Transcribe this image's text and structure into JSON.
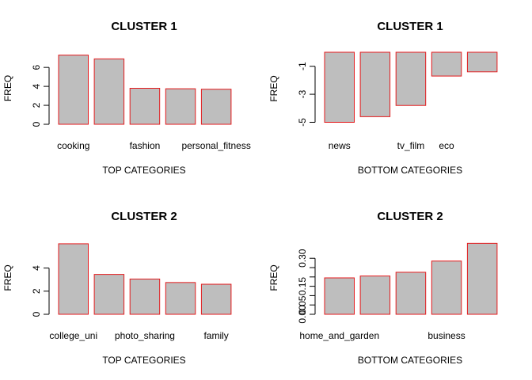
{
  "chart_data": [
    {
      "type": "bar",
      "title": "CLUSTER 1",
      "xlabel": "TOP CATEGORIES",
      "ylabel": "FREQ",
      "categories": [
        "cooking",
        "",
        "fashion",
        "",
        "personal_fitness"
      ],
      "values": [
        7.3,
        6.9,
        3.8,
        3.75,
        3.7
      ],
      "yticks": [
        0,
        2,
        4,
        6
      ],
      "ylim": [
        0,
        7.6
      ],
      "bar_fill": "#bebebe",
      "bar_border": "#e41a1c"
    },
    {
      "type": "bar",
      "title": "CLUSTER 1",
      "xlabel": "BOTTOM CATEGORIES",
      "ylabel": "FREQ",
      "categories": [
        "news",
        "",
        "tv_film",
        "eco",
        ""
      ],
      "values": [
        -5.0,
        -4.6,
        -3.8,
        -1.7,
        -1.4
      ],
      "yticks": [
        -5,
        -3,
        -1
      ],
      "ylim": [
        -5.2,
        0
      ],
      "bar_fill": "#bebebe",
      "bar_border": "#e41a1c"
    },
    {
      "type": "bar",
      "title": "CLUSTER 2",
      "xlabel": "TOP CATEGORIES",
      "ylabel": "FREQ",
      "categories": [
        "college_uni",
        "",
        "photo_sharing",
        "",
        "family"
      ],
      "values": [
        6.1,
        3.45,
        3.05,
        2.75,
        2.6
      ],
      "yticks": [
        0,
        2,
        4
      ],
      "ylim": [
        0,
        6.3
      ],
      "bar_fill": "#bebebe",
      "bar_border": "#e41a1c"
    },
    {
      "type": "bar",
      "title": "CLUSTER 2",
      "xlabel": "BOTTOM CATEGORIES",
      "ylabel": "FREQ",
      "categories": [
        "home_and_garden",
        "",
        "",
        "business",
        ""
      ],
      "values": [
        0.195,
        0.205,
        0.225,
        0.285,
        0.38
      ],
      "ytick_labels": [
        "0.00",
        "0.05",
        "0.15",
        "0.30"
      ],
      "yticks": [
        0,
        0.05,
        0.15,
        0.3
      ],
      "minor_yticks": [
        0.1,
        0.2,
        0.25
      ],
      "ylim": [
        0,
        0.39
      ],
      "bar_fill": "#bebebe",
      "bar_border": "#e41a1c"
    }
  ]
}
